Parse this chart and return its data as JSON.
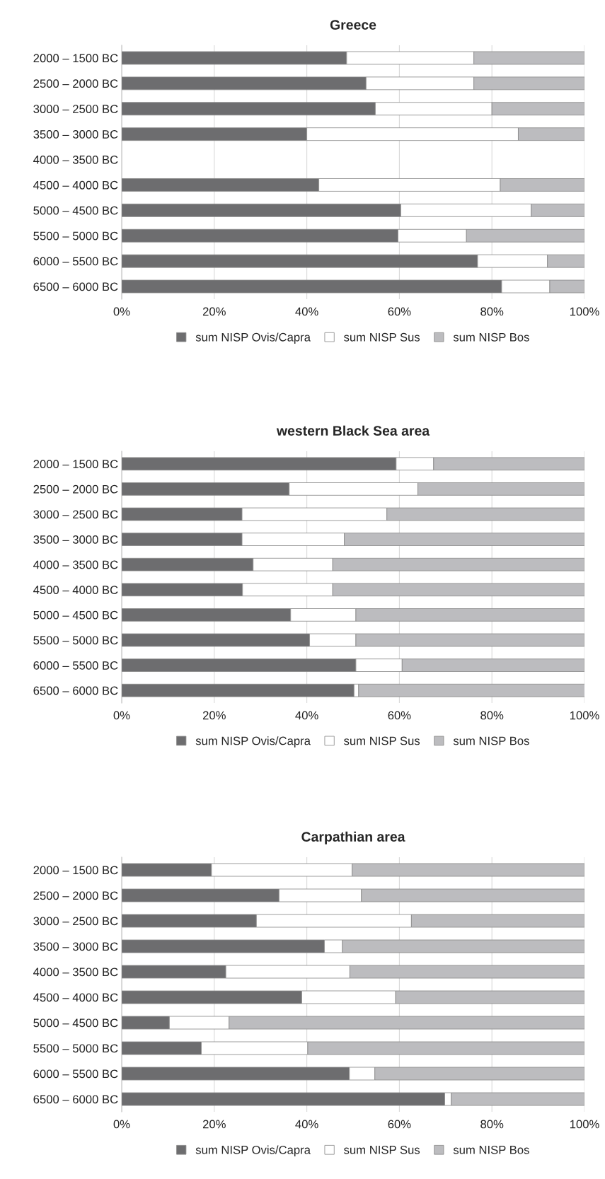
{
  "chart_data": [
    {
      "type": "bar",
      "orientation": "horizontal",
      "stacked": true,
      "title": "Greece",
      "categories": [
        "2000 – 1500 BC",
        "2500 – 2000 BC",
        "3000 – 2500 BC",
        "3500 – 3000 BC",
        "4000 – 3500 BC",
        "4500 – 4000 BC",
        "5000 – 4500 BC",
        "5500 – 5000 BC",
        "6000 – 5500 BC",
        "6500 – 6000 BC"
      ],
      "series": [
        {
          "name": "sum NISP Ovis/Capra",
          "color": "#6d6d6f",
          "values": [
            48.6,
            52.8,
            54.8,
            40.0,
            null,
            42.6,
            60.3,
            59.7,
            76.9,
            82.1
          ]
        },
        {
          "name": "sum NISP Sus",
          "color": "#ffffff",
          "values": [
            27.5,
            23.3,
            25.2,
            45.7,
            null,
            39.2,
            28.2,
            14.8,
            15.1,
            10.4
          ]
        },
        {
          "name": "sum NISP Bos",
          "color": "#bcbcbf",
          "values": [
            23.9,
            23.9,
            20.0,
            14.3,
            null,
            18.2,
            11.5,
            25.5,
            8.0,
            7.5
          ]
        }
      ],
      "xlim": [
        0,
        100
      ],
      "xticks": [
        {
          "value": 0,
          "label": "0%"
        },
        {
          "value": 20,
          "label": "20%"
        },
        {
          "value": 40,
          "label": "40%"
        },
        {
          "value": 60,
          "label": "60%"
        },
        {
          "value": 80,
          "label": "80%"
        },
        {
          "value": 100,
          "label": "100%"
        }
      ],
      "grid": "x",
      "legend": "bottom"
    },
    {
      "type": "bar",
      "orientation": "horizontal",
      "stacked": true,
      "title": "western Black Sea area",
      "categories": [
        "2000 – 1500 BC",
        "2500 – 2000 BC",
        "3000 – 2500 BC",
        "3500 – 3000 BC",
        "4000 – 3500 BC",
        "4500 – 4000 BC",
        "5000 – 4500 BC",
        "5500 – 5000 BC",
        "6000 – 5500 BC",
        "6500 – 6000 BC"
      ],
      "series": [
        {
          "name": "sum NISP Ovis/Capra",
          "color": "#6d6d6f",
          "values": [
            59.3,
            36.2,
            26.0,
            26.0,
            28.4,
            26.1,
            36.5,
            40.6,
            50.6,
            50.2
          ]
        },
        {
          "name": "sum NISP Sus",
          "color": "#ffffff",
          "values": [
            8.1,
            27.8,
            31.3,
            22.1,
            17.2,
            19.5,
            14.1,
            10.0,
            10.0,
            1.0
          ]
        },
        {
          "name": "sum NISP Bos",
          "color": "#bcbcbf",
          "values": [
            32.6,
            36.0,
            42.7,
            51.9,
            54.4,
            54.4,
            49.4,
            49.4,
            39.4,
            48.9
          ]
        }
      ],
      "xlim": [
        0,
        100
      ],
      "xticks": [
        {
          "value": 0,
          "label": "0%"
        },
        {
          "value": 20,
          "label": "20%"
        },
        {
          "value": 40,
          "label": "40%"
        },
        {
          "value": 60,
          "label": "60%"
        },
        {
          "value": 80,
          "label": "80%"
        },
        {
          "value": 100,
          "label": "100%"
        }
      ],
      "grid": "x",
      "legend": "bottom"
    },
    {
      "type": "bar",
      "orientation": "horizontal",
      "stacked": true,
      "title": "Carpathian area",
      "categories": [
        "2000 – 1500 BC",
        "2500 – 2000 BC",
        "3000 – 2500 BC",
        "3500 – 3000 BC",
        "4000 – 3500 BC",
        "4500 – 4000 BC",
        "5000 – 4500 BC",
        "5500 – 5000 BC",
        "6000 – 5500 BC",
        "6500 – 6000 BC"
      ],
      "series": [
        {
          "name": "sum NISP Ovis/Capra",
          "color": "#6d6d6f",
          "values": [
            19.4,
            34.0,
            29.1,
            43.8,
            22.5,
            38.9,
            10.3,
            17.2,
            49.2,
            69.8
          ]
        },
        {
          "name": "sum NISP Sus",
          "color": "#ffffff",
          "values": [
            30.4,
            17.8,
            33.5,
            3.9,
            26.8,
            20.3,
            12.9,
            23.0,
            5.5,
            1.4
          ]
        },
        {
          "name": "sum NISP Bos",
          "color": "#bcbcbf",
          "values": [
            50.2,
            48.2,
            37.4,
            52.3,
            50.7,
            40.8,
            76.8,
            59.8,
            45.3,
            28.8
          ]
        }
      ],
      "xlim": [
        0,
        100
      ],
      "xticks": [
        {
          "value": 0,
          "label": "0%"
        },
        {
          "value": 20,
          "label": "20%"
        },
        {
          "value": 40,
          "label": "40%"
        },
        {
          "value": 60,
          "label": "60%"
        },
        {
          "value": 80,
          "label": "80%"
        },
        {
          "value": 100,
          "label": "100%"
        }
      ],
      "grid": "x",
      "legend": "bottom"
    }
  ]
}
